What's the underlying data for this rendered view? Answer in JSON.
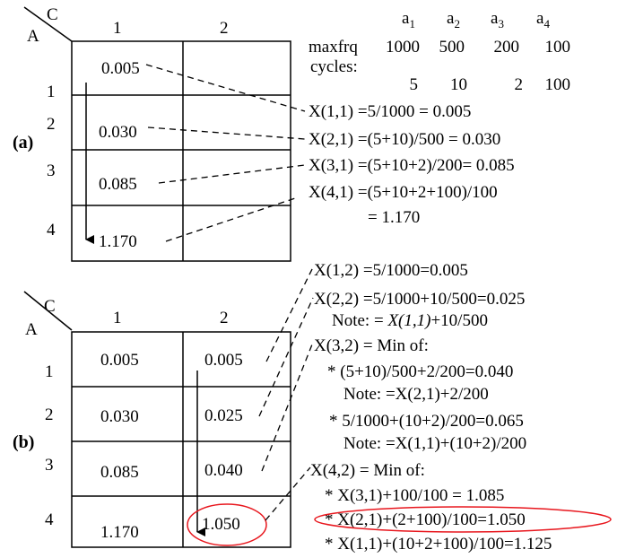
{
  "panel_a": {
    "label": "(a)",
    "corner_top": "C",
    "corner_left": "A",
    "col_headers": [
      "1",
      "2"
    ],
    "row_headers": [
      "1",
      "2",
      "3",
      "4"
    ],
    "col1_values": [
      "0.005",
      "0.030",
      "0.085",
      "1.170"
    ]
  },
  "parameters": {
    "a_labels": [
      {
        "base": "a",
        "sub": "1"
      },
      {
        "base": "a",
        "sub": "2"
      },
      {
        "base": "a",
        "sub": "3"
      },
      {
        "base": "a",
        "sub": "4"
      }
    ],
    "maxfrq_label": "maxfrq",
    "maxfrq_values": [
      "1000",
      "500",
      "200",
      "100"
    ],
    "cycles_label": "cycles:",
    "cycles_values": [
      "5",
      "10",
      "2",
      "100"
    ]
  },
  "formulas_a": [
    "X(1,1) =5/1000 = 0.005",
    "X(2,1) =(5+10)/500 = 0.030",
    "X(3,1) =(5+10+2)/200= 0.085",
    "X(4,1) =(5+10+2+100)/100",
    "= 1.170"
  ],
  "panel_b": {
    "label": "(b)",
    "corner_top": "C",
    "corner_left": "A",
    "col_headers": [
      "1",
      "2"
    ],
    "row_headers": [
      "1",
      "2",
      "3",
      "4"
    ],
    "col1_values": [
      "0.005",
      "0.030",
      "0.085",
      "1.170"
    ],
    "col2_values": [
      "0.005",
      "0.025",
      "0.040",
      "1.050"
    ]
  },
  "formulas_b": {
    "x12": "X(1,2) =5/1000=0.005",
    "x22": "X(2,2) =5/1000+10/500=0.025",
    "x22_note_prefix": "Note: = ",
    "x22_note_italic": "X(1,1)",
    "x22_note_suffix": "+10/500",
    "x32": "X(3,2) = Min of:",
    "x32_opt1": "* (5+10)/500+2/200=0.040",
    "x32_note1": "Note: =X(2,1)+2/200",
    "x32_opt2": "* 5/1000+(10+2)/200=0.065",
    "x32_note2": "Note: =X(1,1)+(10+2)/200",
    "x42": "X(4,2) = Min of:",
    "x42_opt1": "* X(3,1)+100/100 = 1.085",
    "x42_opt2": "* X(2,1)+(2+100)/100=1.050",
    "x42_opt3": "* X(1,1)+(10+2+100)/100=1.125"
  },
  "colors": {
    "highlight": "#e8171e",
    "ink": "#000000"
  }
}
